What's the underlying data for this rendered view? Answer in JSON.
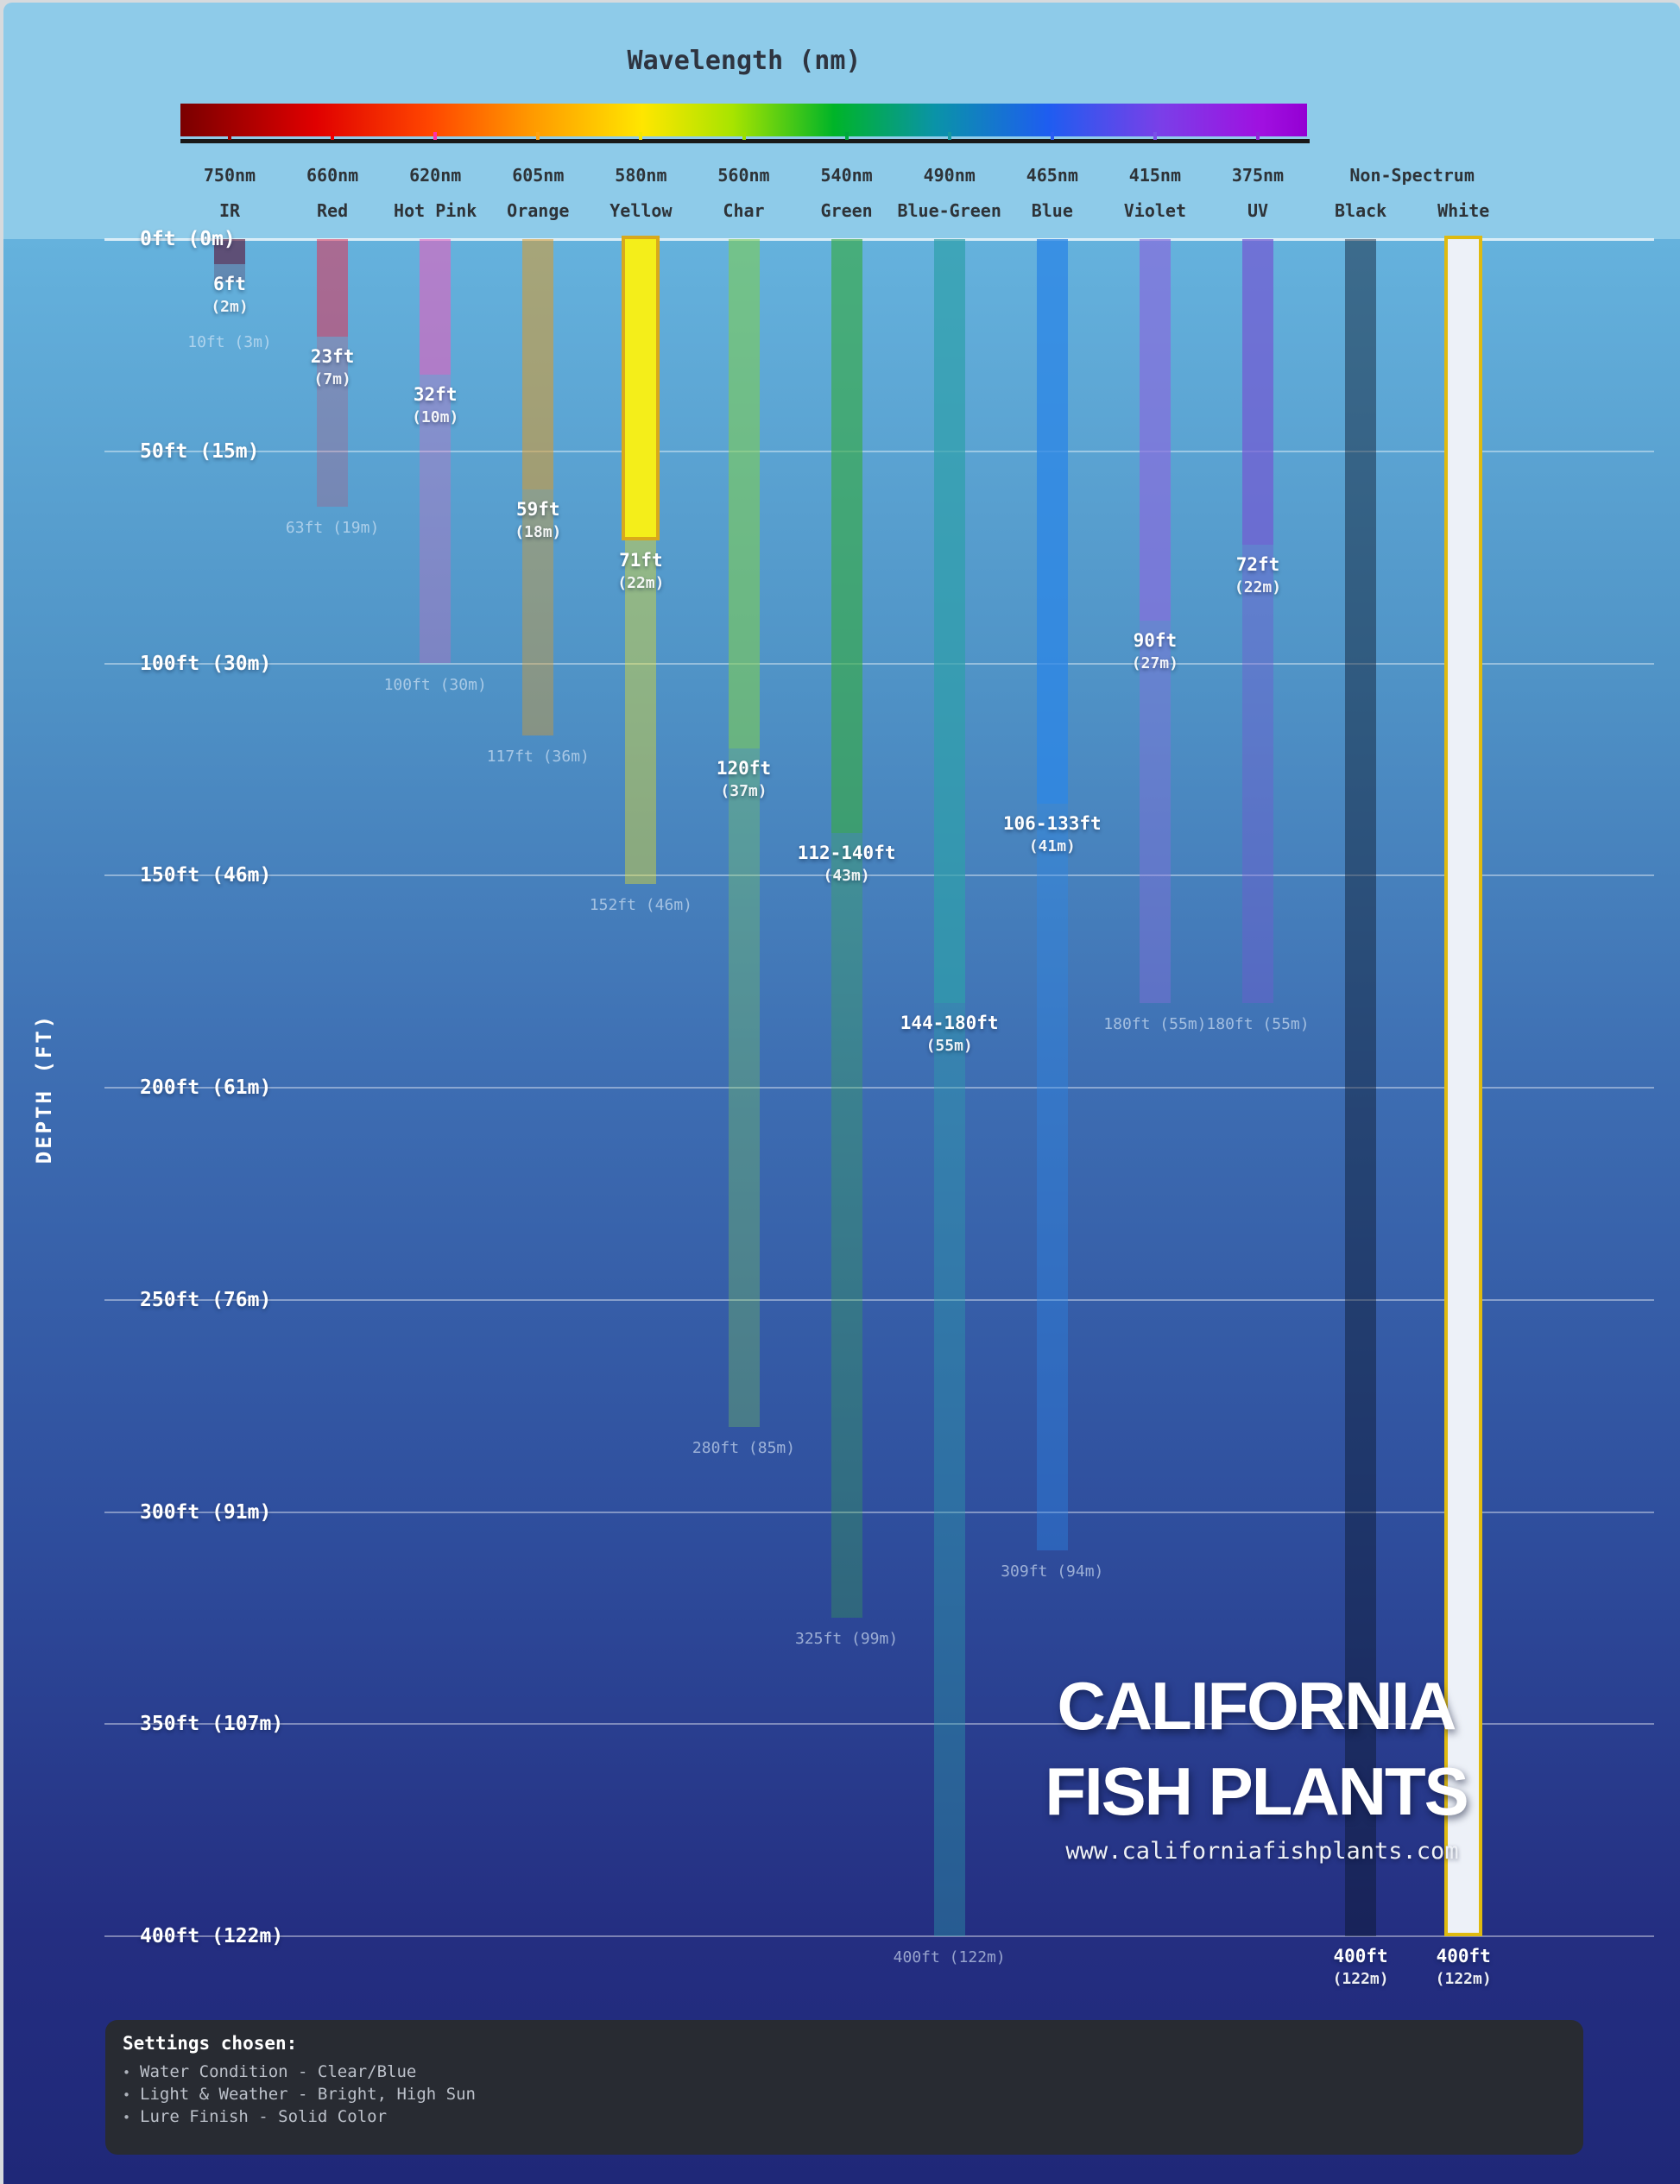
{
  "header": {
    "title": "Wavelength (nm)",
    "spectrum_stops": [
      {
        "color": "#7a0000",
        "pct": 0
      },
      {
        "color": "#e00000",
        "pct": 12
      },
      {
        "color": "#ff4500",
        "pct": 22
      },
      {
        "color": "#ff9800",
        "pct": 31
      },
      {
        "color": "#ffe600",
        "pct": 41
      },
      {
        "color": "#a8e400",
        "pct": 49
      },
      {
        "color": "#00b428",
        "pct": 58
      },
      {
        "color": "#0a93a8",
        "pct": 67
      },
      {
        "color": "#1e5df0",
        "pct": 77
      },
      {
        "color": "#7a3fe8",
        "pct": 87
      },
      {
        "color": "#a010e0",
        "pct": 96
      },
      {
        "color": "#9400d3",
        "pct": 100
      }
    ]
  },
  "axis": {
    "depth_title": "DEPTH (FT)",
    "gridlines": [
      {
        "ft": 0,
        "label": "0ft (0m)"
      },
      {
        "ft": 50,
        "label": "50ft (15m)"
      },
      {
        "ft": 100,
        "label": "100ft (30m)"
      },
      {
        "ft": 150,
        "label": "150ft (46m)"
      },
      {
        "ft": 200,
        "label": "200ft (61m)"
      },
      {
        "ft": 250,
        "label": "250ft (76m)"
      },
      {
        "ft": 300,
        "label": "300ft (91m)"
      },
      {
        "ft": 350,
        "label": "350ft (107m)"
      },
      {
        "ft": 400,
        "label": "400ft (122m)"
      }
    ]
  },
  "chart_data": {
    "type": "bar",
    "title": "Wavelength (nm)",
    "ylabel": "DEPTH (FT)",
    "ylim": [
      0,
      400
    ],
    "y_unit": "ft",
    "categories": [
      "IR",
      "Red",
      "Hot Pink",
      "Orange",
      "Yellow",
      "Char",
      "Green",
      "Blue-Green",
      "Blue",
      "Violet",
      "UV",
      "Black",
      "White"
    ],
    "series": [
      {
        "name": "Solid visibility depth (ft)",
        "values": [
          6,
          23,
          32,
          59,
          71,
          120,
          140,
          180,
          133,
          90,
          72,
          400,
          400
        ]
      },
      {
        "name": "Faded visibility depth (ft)",
        "values": [
          10,
          63,
          100,
          117,
          152,
          280,
          325,
          400,
          309,
          180,
          180,
          null,
          null
        ]
      }
    ],
    "columns": [
      {
        "id": "ir",
        "nm": "750nm",
        "name": "IR",
        "tick": "#a00000",
        "rgb": "90,20,55",
        "sa": 0.62,
        "fa": 0.25,
        "solid_ft": 6,
        "faded_ft": 10,
        "solid_label": [
          "6ft",
          "(2m)"
        ],
        "faded_label": "10ft (3m)"
      },
      {
        "id": "red",
        "nm": "660nm",
        "name": "Red",
        "tick": "#f00000",
        "rgb": "225,50,85",
        "sa": 0.55,
        "fa": 0.22,
        "solid_ft": 23,
        "faded_ft": 63,
        "solid_label": [
          "23ft",
          "(7m)"
        ],
        "faded_label": "63ft (19m)"
      },
      {
        "id": "hot-pink",
        "nm": "620nm",
        "name": "Hot Pink",
        "tick": "#ff30a8",
        "rgb": "230,95,190",
        "sa": 0.6,
        "fa": 0.3,
        "solid_ft": 32,
        "faded_ft": 100,
        "solid_label": [
          "32ft",
          "(10m)"
        ],
        "faded_label": "100ft (30m)"
      },
      {
        "id": "orange",
        "nm": "605nm",
        "name": "Orange",
        "tick": "#ffa310",
        "rgb": "220,155,40",
        "sa": 0.55,
        "fa": 0.4,
        "solid_ft": 59,
        "faded_ft": 117,
        "solid_label": [
          "59ft",
          "(18m)"
        ],
        "faded_label": "117ft (36m)"
      },
      {
        "id": "yellow",
        "nm": "580nm",
        "name": "Yellow",
        "tick": "#f2e600",
        "fill": "#f4ee1a",
        "border": "#d9a91a",
        "rgb": "230,225,40",
        "fa": 0.42,
        "solid_ft": 71,
        "faded_ft": 152,
        "solid_label": [
          "71ft",
          "(22m)"
        ],
        "faded_label": "152ft (46m)"
      },
      {
        "id": "char",
        "nm": "560nm",
        "name": "Char",
        "tick": "#9ade00",
        "rgb": "125,205,85",
        "sa": 0.6,
        "fa": 0.32,
        "solid_ft": 120,
        "faded_ft": 280,
        "solid_label": [
          "120ft",
          "(37m)"
        ],
        "faded_label": "280ft (85m)"
      },
      {
        "id": "green",
        "nm": "540nm",
        "name": "Green",
        "tick": "#00a83c",
        "rgb": "55,170,70",
        "sa": 0.65,
        "fa": 0.32,
        "solid_ft": 140,
        "faded_ft": 325,
        "solid_label": [
          "112-140ft",
          "(43m)"
        ],
        "faded_label": "325ft (99m)"
      },
      {
        "id": "blue-green",
        "nm": "490nm",
        "name": "Blue-Green",
        "tick": "#1898a0",
        "rgb": "45,160,170",
        "sa": 0.7,
        "fa": 0.4,
        "solid_ft": 180,
        "faded_ft": 400,
        "solid_label": [
          "144-180ft",
          "(55m)"
        ],
        "faded_label": "400ft (122m)"
      },
      {
        "id": "blue",
        "nm": "465nm",
        "name": "Blue",
        "tick": "#2b5cf2",
        "rgb": "45,135,230",
        "sa": 0.78,
        "fa": 0.4,
        "solid_ft": 133,
        "faded_ft": 309,
        "solid_label": [
          "106-133ft",
          "(41m)"
        ],
        "faded_label": "309ft (94m)"
      },
      {
        "id": "violet",
        "nm": "415nm",
        "name": "Violet",
        "tick": "#7a50e8",
        "rgb": "135,110,220",
        "sa": 0.72,
        "fa": 0.42,
        "solid_ft": 90,
        "faded_ft": 180,
        "solid_label": [
          "90ft",
          "(27m)"
        ],
        "faded_label": "180ft (55m)"
      },
      {
        "id": "uv",
        "nm": "375nm",
        "name": "UV",
        "tick": "#9222d8",
        "rgb": "115,90,210",
        "sa": 0.72,
        "fa": 0.42,
        "solid_ft": 72,
        "faded_ft": 180,
        "solid_label": [
          "72ft",
          "(22m)"
        ],
        "faded_label": "180ft (55m)"
      },
      {
        "id": "black",
        "nm": "Non-Spectrum",
        "nm_span": 2,
        "name": "Black",
        "rgb": "12,22,42",
        "sa": 0.45,
        "solid_ft": 400,
        "solid_label": [
          "400ft",
          "(122m)"
        ]
      },
      {
        "id": "white",
        "name": "White",
        "fill": "#edf1f8",
        "border": "#dfba10",
        "solid_ft": 400,
        "solid_label": [
          "400ft",
          "(122m)"
        ]
      }
    ]
  },
  "watermark": {
    "line1": "CALIFORNIA",
    "line2": "FISH PLANTS",
    "url": "www.californiafishplants.com"
  },
  "settings": {
    "heading": "Settings chosen:",
    "items": [
      "Water Condition - Clear/Blue",
      "Light & Weather - Bright, High Sun",
      "Lure Finish - Solid Color"
    ]
  }
}
